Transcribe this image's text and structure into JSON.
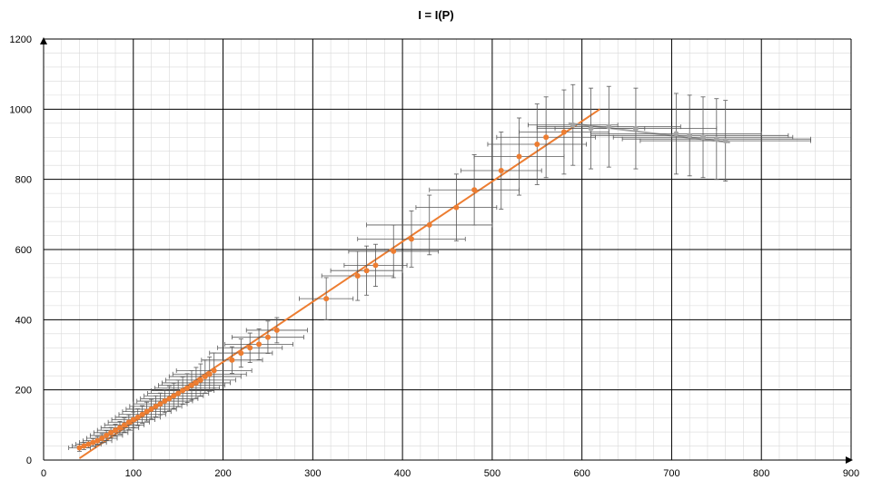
{
  "chart_data": {
    "type": "scatter",
    "title": "I = I(P)",
    "xlim": [
      0,
      900
    ],
    "ylim": [
      0,
      1200
    ],
    "x_ticks": [
      "0",
      "100",
      "200",
      "300",
      "400",
      "500",
      "600",
      "700",
      "800",
      "900"
    ],
    "y_ticks": [
      "0",
      "200",
      "400",
      "600",
      "800",
      "1000",
      "1200"
    ],
    "grid": true,
    "legend": "none",
    "colors": {
      "orange": "#ED7D31",
      "gray": "#A5A5A5",
      "errorbar": "#595959",
      "major_grid": "#000000",
      "minor_grid": "#D9D9D9"
    },
    "series": [
      {
        "color": "#ED7D31",
        "points": [
          [
            40,
            35
          ],
          [
            45,
            40
          ],
          [
            50,
            45
          ],
          [
            55,
            50
          ],
          [
            60,
            55
          ],
          [
            65,
            62
          ],
          [
            70,
            70
          ],
          [
            75,
            78
          ],
          [
            80,
            85
          ],
          [
            85,
            92
          ],
          [
            90,
            100
          ],
          [
            95,
            108
          ],
          [
            100,
            115
          ],
          [
            105,
            122
          ],
          [
            110,
            130
          ],
          [
            115,
            138
          ],
          [
            120,
            145
          ],
          [
            125,
            153
          ],
          [
            130,
            160
          ],
          [
            135,
            168
          ],
          [
            140,
            175
          ],
          [
            145,
            183
          ],
          [
            150,
            190
          ],
          [
            155,
            198
          ],
          [
            160,
            205
          ],
          [
            165,
            213
          ],
          [
            170,
            220
          ],
          [
            175,
            228
          ],
          [
            180,
            238
          ],
          [
            185,
            245
          ],
          [
            190,
            255
          ],
          [
            210,
            285
          ],
          [
            220,
            305
          ],
          [
            230,
            320
          ],
          [
            240,
            330
          ],
          [
            250,
            350
          ],
          [
            260,
            370
          ],
          [
            315,
            460
          ],
          [
            350,
            525
          ],
          [
            360,
            540
          ],
          [
            370,
            555
          ],
          [
            390,
            595
          ],
          [
            410,
            630
          ],
          [
            430,
            670
          ],
          [
            460,
            720
          ],
          [
            480,
            770
          ],
          [
            510,
            825
          ],
          [
            530,
            865
          ],
          [
            550,
            900
          ],
          [
            560,
            920
          ],
          [
            580,
            935
          ]
        ],
        "error_bars": [
          [
            40,
            12,
            10
          ],
          [
            45,
            13,
            10
          ],
          [
            50,
            14,
            10
          ],
          [
            55,
            15,
            11
          ],
          [
            60,
            16,
            12
          ],
          [
            65,
            17,
            13
          ],
          [
            70,
            18,
            14
          ],
          [
            75,
            19,
            15
          ],
          [
            80,
            20,
            17
          ],
          [
            85,
            21,
            18
          ],
          [
            90,
            22,
            20
          ],
          [
            95,
            23,
            21
          ],
          [
            100,
            24,
            22
          ],
          [
            105,
            25,
            24
          ],
          [
            110,
            26,
            25
          ],
          [
            115,
            27,
            27
          ],
          [
            120,
            28,
            28
          ],
          [
            125,
            29,
            30
          ],
          [
            130,
            30,
            31
          ],
          [
            135,
            31,
            33
          ],
          [
            140,
            32,
            35
          ],
          [
            145,
            33,
            36
          ],
          [
            150,
            34,
            38
          ],
          [
            155,
            35,
            39
          ],
          [
            160,
            36,
            41
          ],
          [
            165,
            37,
            42
          ],
          [
            170,
            38,
            44
          ],
          [
            175,
            39,
            46
          ],
          [
            180,
            40,
            47
          ],
          [
            185,
            41,
            49
          ],
          [
            190,
            42,
            50
          ],
          [
            210,
            34,
            38
          ],
          [
            220,
            35,
            40
          ],
          [
            230,
            36,
            42
          ],
          [
            240,
            38,
            44
          ],
          [
            250,
            40,
            46
          ],
          [
            260,
            34,
            36
          ],
          [
            315,
            30,
            60
          ],
          [
            350,
            40,
            70
          ],
          [
            360,
            40,
            70
          ],
          [
            370,
            35,
            60
          ],
          [
            390,
            50,
            75
          ],
          [
            410,
            60,
            80
          ],
          [
            430,
            70,
            85
          ],
          [
            460,
            45,
            95
          ],
          [
            480,
            50,
            100
          ],
          [
            510,
            45,
            110
          ],
          [
            530,
            50,
            110
          ],
          [
            550,
            55,
            115
          ],
          [
            560,
            55,
            115
          ],
          [
            580,
            50,
            120
          ]
        ],
        "trendline": [
          [
            40,
            5
          ],
          [
            620,
            1000
          ]
        ]
      },
      {
        "color": "#A5A5A5",
        "points": [
          [
            590,
            955
          ],
          [
            610,
            945
          ],
          [
            630,
            950
          ],
          [
            660,
            945
          ],
          [
            705,
            930
          ],
          [
            720,
            925
          ],
          [
            735,
            920
          ],
          [
            750,
            915
          ],
          [
            760,
            910
          ]
        ],
        "error_bars": [
          [
            590,
            50,
            115
          ],
          [
            610,
            60,
            115
          ],
          [
            630,
            80,
            115
          ],
          [
            660,
            90,
            115
          ],
          [
            705,
            95,
            115
          ],
          [
            720,
            110,
            115
          ],
          [
            735,
            100,
            115
          ],
          [
            750,
            105,
            115
          ],
          [
            760,
            95,
            115
          ]
        ],
        "trendline": [
          [
            585,
            960
          ],
          [
            765,
            905
          ]
        ]
      }
    ]
  }
}
